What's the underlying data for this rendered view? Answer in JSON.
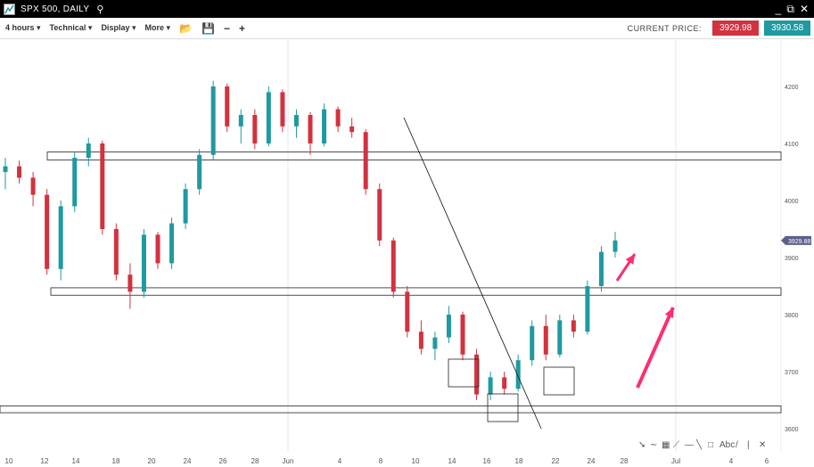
{
  "window": {
    "title": "SPX 500, DAILY",
    "minimize": "_",
    "popout": "⧉",
    "close": "✕"
  },
  "toolbar": {
    "timeframe": "4 hours",
    "technical": "Technical",
    "display": "Display",
    "more": "More",
    "open_icon": "folder-icon",
    "save_icon": "save-icon",
    "zoom_out": "−",
    "zoom_in": "+",
    "current_price_label": "CURRENT PRICE:",
    "bid": "3929.98",
    "ask": "3930.58"
  },
  "drawing_tools": [
    "arrow",
    "curve",
    "fib-grid",
    "fan",
    "horizontal-line",
    "trend-line",
    "rectangle",
    "text",
    "line",
    "vertical-line",
    "delete"
  ],
  "chart_data": {
    "type": "candlestick",
    "y_ticks": [
      "4200",
      "4100",
      "4000",
      "3900",
      "3800",
      "3700",
      "3600"
    ],
    "ylim": [
      3590,
      4250
    ],
    "x_ticks": [
      "10",
      "12",
      "14",
      "18",
      "20",
      "24",
      "26",
      "28",
      "Jun",
      "4",
      "8",
      "10",
      "14",
      "16",
      "18",
      "22",
      "24",
      "28",
      "Jul",
      "4",
      "6"
    ],
    "current_price": "3929.88",
    "colors": {
      "up": "#1e9aa0",
      "down": "#d2323f",
      "annotation": "#ff2d6e"
    },
    "support_resistance_zones": [
      [
        4071,
        4085
      ],
      [
        3834,
        3847
      ],
      [
        3628,
        3640
      ]
    ],
    "candles": [
      [
        4050,
        4075,
        4020,
        4060
      ],
      [
        4060,
        4070,
        4030,
        4040
      ],
      [
        4040,
        4050,
        3990,
        4010
      ],
      [
        4010,
        4020,
        3870,
        3880
      ],
      [
        3880,
        4000,
        3860,
        3990
      ],
      [
        3990,
        4085,
        3980,
        4075
      ],
      [
        4075,
        4110,
        4060,
        4100
      ],
      [
        4100,
        4105,
        3940,
        3950
      ],
      [
        3950,
        3960,
        3860,
        3870
      ],
      [
        3870,
        3890,
        3810,
        3840
      ],
      [
        3840,
        3950,
        3830,
        3940
      ],
      [
        3940,
        3945,
        3880,
        3890
      ],
      [
        3890,
        3970,
        3880,
        3960
      ],
      [
        3960,
        4030,
        3950,
        4020
      ],
      [
        4020,
        4090,
        4010,
        4080
      ],
      [
        4080,
        4210,
        4070,
        4200
      ],
      [
        4200,
        4205,
        4120,
        4130
      ],
      [
        4130,
        4160,
        4100,
        4150
      ],
      [
        4150,
        4160,
        4090,
        4100
      ],
      [
        4100,
        4200,
        4095,
        4190
      ],
      [
        4190,
        4195,
        4120,
        4130
      ],
      [
        4130,
        4160,
        4110,
        4150
      ],
      [
        4150,
        4155,
        4080,
        4100
      ],
      [
        4100,
        4170,
        4095,
        4160
      ],
      [
        4160,
        4165,
        4120,
        4130
      ],
      [
        4130,
        4145,
        4110,
        4120
      ],
      [
        4120,
        4125,
        4010,
        4020
      ],
      [
        4020,
        4030,
        3920,
        3930
      ],
      [
        3930,
        3935,
        3830,
        3840
      ],
      [
        3840,
        3850,
        3760,
        3770
      ],
      [
        3770,
        3790,
        3730,
        3740
      ],
      [
        3740,
        3770,
        3720,
        3760
      ],
      [
        3760,
        3815,
        3750,
        3800
      ],
      [
        3800,
        3805,
        3720,
        3730
      ],
      [
        3730,
        3740,
        3650,
        3660
      ],
      [
        3660,
        3700,
        3650,
        3690
      ],
      [
        3690,
        3700,
        3660,
        3670
      ],
      [
        3670,
        3730,
        3665,
        3720
      ],
      [
        3720,
        3790,
        3710,
        3780
      ],
      [
        3780,
        3800,
        3720,
        3730
      ],
      [
        3730,
        3800,
        3725,
        3790
      ],
      [
        3790,
        3800,
        3760,
        3770
      ],
      [
        3770,
        3860,
        3765,
        3850
      ],
      [
        3850,
        3920,
        3840,
        3910
      ],
      [
        3910,
        3945,
        3900,
        3930
      ]
    ]
  }
}
